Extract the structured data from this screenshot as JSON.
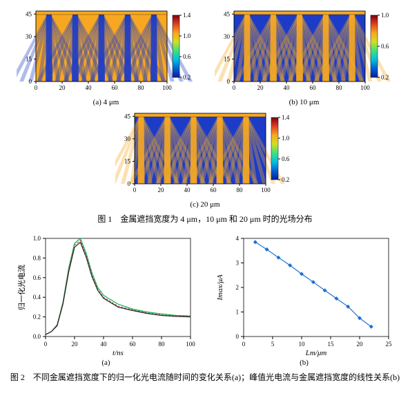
{
  "figure1": {
    "panel_a": {
      "label": "(a) 4 μm",
      "xlim": [
        0,
        100
      ],
      "xticks": [
        0,
        20,
        40,
        60,
        80,
        100
      ],
      "ylim": [
        0,
        47
      ],
      "yticks": [
        0,
        15,
        30,
        45
      ],
      "colorbar_ticks": [
        0.2,
        0.6,
        1.0,
        1.4
      ],
      "background_color": "#f7a820",
      "stripe_color": "#1c3cc8",
      "stripe_positions": [
        10,
        30,
        50,
        70,
        90
      ]
    },
    "panel_b": {
      "label": "(b) 10 μm",
      "xlim": [
        0,
        100
      ],
      "xticks": [
        0,
        20,
        40,
        60,
        80,
        100
      ],
      "ylim": [
        0,
        47
      ],
      "yticks": [
        0,
        15,
        30,
        45
      ],
      "colorbar_ticks": [
        0.2,
        0.6,
        1.0
      ],
      "background_color": "#1c3cc8",
      "stripe_color": "#f7a820",
      "stripe_positions": [
        10,
        30,
        50,
        70,
        90
      ]
    },
    "panel_c": {
      "label": "(c) 20 μm",
      "xlim": [
        0,
        100
      ],
      "xticks": [
        0,
        20,
        40,
        60,
        80,
        100
      ],
      "ylim": [
        0,
        47
      ],
      "yticks": [
        0,
        15,
        30,
        45
      ],
      "colorbar_ticks": [
        0.2,
        0.6,
        1.0,
        1.4
      ],
      "background_color": "#1c3cc8",
      "stripe_color": "#f7a820",
      "stripe_positions": [
        5,
        25,
        45,
        65,
        85
      ]
    },
    "caption": "图 1　金属遮挡宽度为 4 μm，10 μm 和 20 μm 时的光场分布"
  },
  "figure2": {
    "panel_a": {
      "label": "(a)",
      "xlabel": "t/ns",
      "ylabel": "归一化光电流",
      "xlim": [
        0,
        100
      ],
      "xticks": [
        0,
        20,
        40,
        60,
        80,
        100
      ],
      "ylim": [
        0,
        1.0
      ],
      "yticks": [
        0,
        0.2,
        0.4,
        0.6,
        0.8,
        1.0
      ],
      "curves": [
        {
          "color": "#00b050",
          "dash": "0",
          "data": [
            [
              0,
              0.02
            ],
            [
              4,
              0.05
            ],
            [
              8,
              0.12
            ],
            [
              12,
              0.35
            ],
            [
              16,
              0.7
            ],
            [
              20,
              0.95
            ],
            [
              24,
              1.0
            ],
            [
              28,
              0.85
            ],
            [
              32,
              0.65
            ],
            [
              36,
              0.5
            ],
            [
              40,
              0.42
            ],
            [
              50,
              0.33
            ],
            [
              60,
              0.28
            ],
            [
              70,
              0.25
            ],
            [
              80,
              0.23
            ],
            [
              90,
              0.215
            ],
            [
              100,
              0.21
            ]
          ]
        },
        {
          "color": "#c0504d",
          "dash": "3,2",
          "data": [
            [
              0,
              0.02
            ],
            [
              4,
              0.05
            ],
            [
              8,
              0.12
            ],
            [
              12,
              0.34
            ],
            [
              16,
              0.68
            ],
            [
              20,
              0.93
            ],
            [
              24,
              0.98
            ],
            [
              28,
              0.83
            ],
            [
              32,
              0.63
            ],
            [
              36,
              0.48
            ],
            [
              40,
              0.4
            ],
            [
              50,
              0.31
            ],
            [
              60,
              0.27
            ],
            [
              70,
              0.24
            ],
            [
              80,
              0.22
            ],
            [
              90,
              0.21
            ],
            [
              100,
              0.205
            ]
          ]
        },
        {
          "color": "#222",
          "dash": "0",
          "data": [
            [
              0,
              0.02
            ],
            [
              4,
              0.05
            ],
            [
              8,
              0.11
            ],
            [
              12,
              0.33
            ],
            [
              16,
              0.66
            ],
            [
              20,
              0.91
            ],
            [
              24,
              0.96
            ],
            [
              28,
              0.81
            ],
            [
              32,
              0.61
            ],
            [
              36,
              0.47
            ],
            [
              40,
              0.39
            ],
            [
              50,
              0.3
            ],
            [
              60,
              0.265
            ],
            [
              70,
              0.235
            ],
            [
              80,
              0.215
            ],
            [
              90,
              0.205
            ],
            [
              100,
              0.2
            ]
          ]
        }
      ]
    },
    "panel_b": {
      "label": "(b)",
      "xlabel": "Lm/μm",
      "ylabel": "Imax/μA",
      "xlim": [
        0,
        25
      ],
      "xticks": [
        0,
        5,
        10,
        15,
        20,
        25
      ],
      "ylim": [
        0,
        4
      ],
      "yticks": [
        0,
        1,
        2,
        3,
        4
      ],
      "data": {
        "x": [
          2,
          4,
          6,
          8,
          10,
          12,
          14,
          16,
          18,
          20,
          22
        ],
        "y": [
          3.85,
          3.55,
          3.22,
          2.9,
          2.55,
          2.22,
          1.88,
          1.55,
          1.22,
          0.75,
          0.4
        ]
      },
      "marker_color": "#1f6fd4",
      "line_color": "#1f6fd4"
    },
    "caption": "图 2　不同金属遮挡宽度下的归一化光电流随时间的变化关系(a)；峰值光电流与金属遮挡宽度的线性关系(b)"
  },
  "colorbar_gradient": [
    "#0020a0",
    "#0060d0",
    "#00c0e0",
    "#40e080",
    "#d0e020",
    "#f7a820",
    "#e04020",
    "#800010"
  ]
}
